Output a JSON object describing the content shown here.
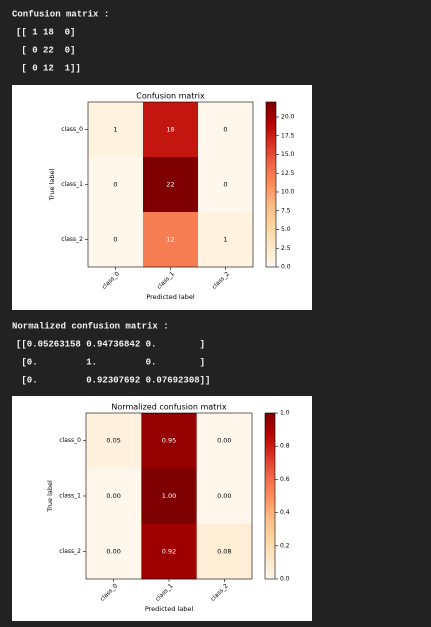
{
  "outputs": [
    {
      "lines": [
        "Confusion matrix :",
        "[[ 1 18  0]",
        " [ 0 22  0]",
        " [ 0 12  1]]"
      ]
    },
    {
      "lines": [
        "Normalized confusion matrix :",
        "[[0.05263158 0.94736842 0.        ]",
        " [0.         1.         0.        ]",
        " [0.         0.92307692 0.07692308]]"
      ]
    }
  ],
  "chart_data": [
    {
      "type": "heatmap",
      "title": "Confusion matrix",
      "x_label": "Predicted label",
      "y_label": "True label",
      "x": [
        "class_0",
        "class_1",
        "class_2"
      ],
      "y": [
        "class_0",
        "class_1",
        "class_2"
      ],
      "values": [
        [
          1,
          18,
          0
        ],
        [
          0,
          22,
          0
        ],
        [
          0,
          12,
          1
        ]
      ],
      "colormap": "OrRd",
      "clim": [
        0,
        22
      ],
      "cticks": [
        {
          "value": 0,
          "label": "0.0"
        },
        {
          "value": 2.5,
          "label": "2.5"
        },
        {
          "value": 5,
          "label": "5.0"
        },
        {
          "value": 7.5,
          "label": "7.5"
        },
        {
          "value": 10,
          "label": "10.0"
        },
        {
          "value": 12.5,
          "label": "12.5"
        },
        {
          "value": 15,
          "label": "15.0"
        },
        {
          "value": 17.5,
          "label": "17.5"
        },
        {
          "value": 20,
          "label": "20.0"
        }
      ]
    },
    {
      "type": "heatmap",
      "title": "Normalized confusion matrix",
      "x_label": "Predicted label",
      "y_label": "True label",
      "x": [
        "class_0",
        "class_1",
        "class_2"
      ],
      "y": [
        "class_0",
        "class_1",
        "class_2"
      ],
      "values": [
        [
          0.05263158,
          0.94736842,
          0
        ],
        [
          0,
          1,
          0
        ],
        [
          0,
          0.92307692,
          0.07692308
        ]
      ],
      "value_labels": [
        [
          "0.05",
          "0.95",
          "0.00"
        ],
        [
          "0.00",
          "1.00",
          "0.00"
        ],
        [
          "0.00",
          "0.92",
          "0.08"
        ]
      ],
      "colormap": "OrRd",
      "clim": [
        0,
        1
      ],
      "cticks": [
        {
          "value": 0,
          "label": "0.0"
        },
        {
          "value": 0.2,
          "label": "0.2"
        },
        {
          "value": 0.4,
          "label": "0.4"
        },
        {
          "value": 0.6,
          "label": "0.6"
        },
        {
          "value": 0.8,
          "label": "0.8"
        },
        {
          "value": 1,
          "label": "1.0"
        }
      ]
    }
  ]
}
